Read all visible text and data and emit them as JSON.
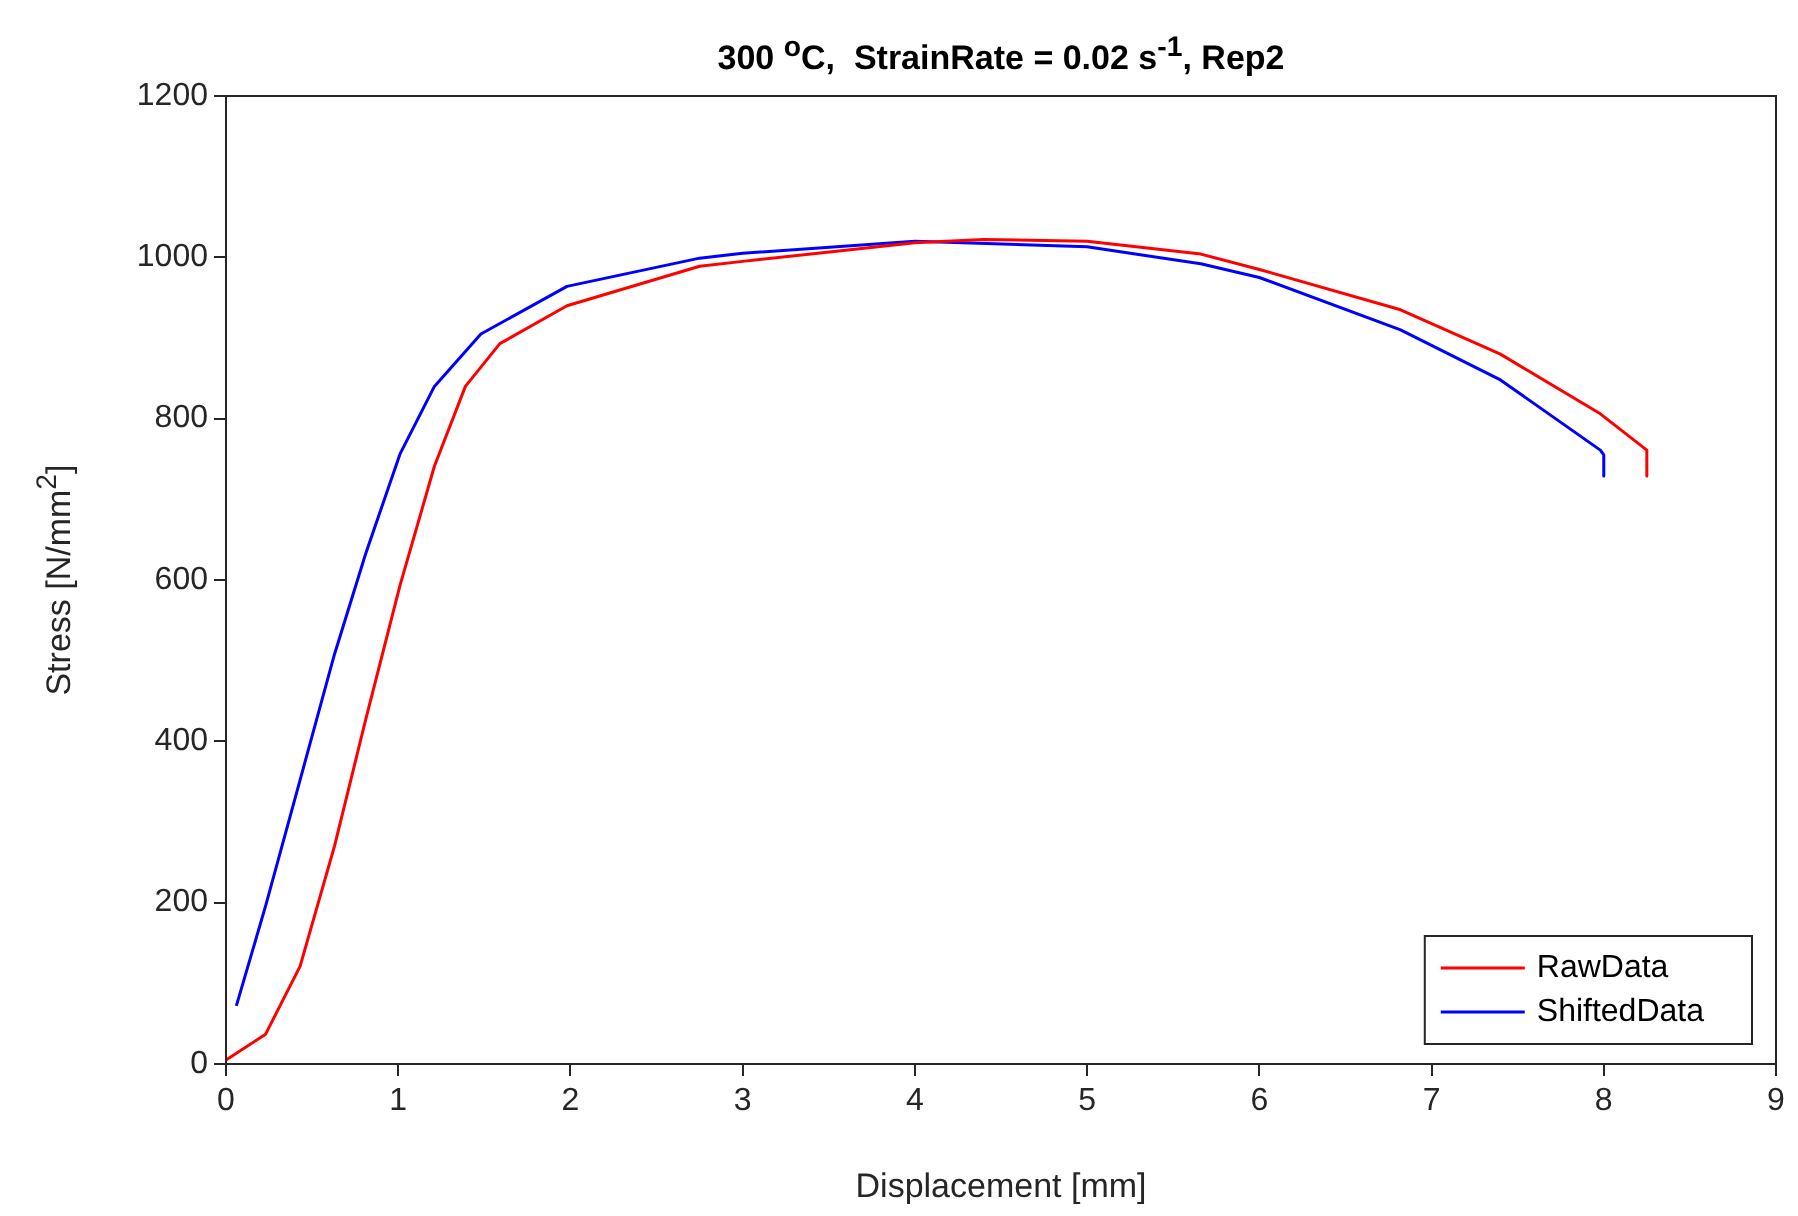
{
  "chart_data": {
    "type": "line",
    "title": "300 $^{o}$C,  StrainRate = 0.02 s$^{-1}$, Rep2",
    "xlabel": "Displacement [mm]",
    "ylabel": "Stress [N/mm$^{2}$]",
    "xlim": [
      0,
      9
    ],
    "ylim": [
      0,
      1200
    ],
    "xticks": [
      0,
      1,
      2,
      3,
      4,
      5,
      6,
      7,
      8,
      9
    ],
    "yticks": [
      0,
      200,
      400,
      600,
      800,
      1000,
      1200
    ],
    "grid": false,
    "legend": "bottom right",
    "marker": "none",
    "line_style": "solid",
    "series": [
      {
        "name": "RawData",
        "color": "#ff0000",
        "x": [
          0,
          0.23,
          0.43,
          0.63,
          0.81,
          1.01,
          1.21,
          1.39,
          1.59,
          1.98,
          2.75,
          3,
          4,
          4.4,
          5,
          5.66,
          6,
          6.82,
          7.4,
          7.98,
          8.25,
          8.25
        ],
        "values": [
          5,
          37,
          121,
          270,
          426,
          593,
          741,
          840,
          893,
          940,
          989,
          995,
          1018,
          1022,
          1020,
          1004,
          985,
          935,
          880,
          806,
          761,
          729
        ]
      },
      {
        "name": "ShiftedData",
        "color": "#0000ff",
        "x": [
          0.06,
          0.23,
          0.43,
          0.63,
          0.81,
          1.01,
          1.21,
          1.48,
          1.98,
          2.75,
          3,
          4,
          5,
          5.66,
          6,
          6.82,
          7.4,
          7.98,
          8,
          8
        ],
        "values": [
          72,
          196,
          352,
          508,
          632,
          756,
          840,
          905,
          964,
          999,
          1005,
          1020,
          1013,
          992,
          975,
          910,
          848,
          761,
          755,
          729
        ]
      }
    ]
  }
}
